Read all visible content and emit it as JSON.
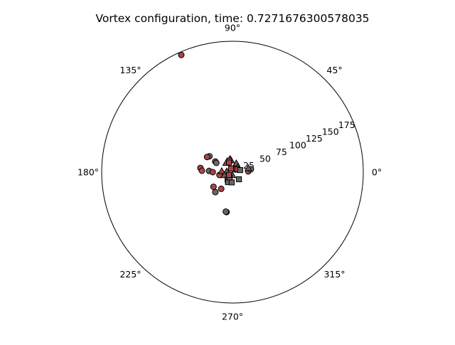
{
  "chart_data": {
    "type": "scatter",
    "projection": "polar",
    "title": "Vortex configuration, time: 0.7271676300578035",
    "theta_ticks": [
      "0°",
      "45°",
      "90°",
      "135°",
      "180°",
      "225°",
      "270°",
      "315°"
    ],
    "theta_tick_values_deg": [
      0,
      45,
      90,
      135,
      180,
      225,
      270,
      315
    ],
    "r_ticks": [
      25,
      50,
      75,
      100,
      125,
      150,
      175
    ],
    "r_tick_labels": [
      "25",
      "50",
      "75",
      "100",
      "125",
      "150",
      "175"
    ],
    "r_label_angle_deg": 22.5,
    "rlim": [
      0,
      185
    ],
    "grid": false,
    "colors": {
      "red": "#a94545",
      "gray": "#666666",
      "edge": "#000000"
    },
    "series": [
      {
        "marker": "circle",
        "points": [
          {
            "r": 180.8,
            "theta": 113.6,
            "color": "red"
          },
          {
            "r": 22.3,
            "theta": 2.6,
            "color": "red"
          },
          {
            "r": 26.3,
            "theta": 8.7,
            "color": "gray"
          },
          {
            "r": 39.5,
            "theta": 145.5,
            "color": "gray"
          },
          {
            "r": 41.8,
            "theta": 149.1,
            "color": "red"
          },
          {
            "r": 28.6,
            "theta": 148.4,
            "color": "red"
          },
          {
            "r": 26.3,
            "theta": 150.1,
            "color": "gray"
          },
          {
            "r": 45.7,
            "theta": 172.5,
            "color": "red"
          },
          {
            "r": 43.3,
            "theta": 177.3,
            "color": "red"
          },
          {
            "r": 33.1,
            "theta": 177.1,
            "color": "gray"
          },
          {
            "r": 27.9,
            "theta": 180.1,
            "color": "red"
          },
          {
            "r": 18.8,
            "theta": 192.4,
            "color": "red"
          },
          {
            "r": 33.9,
            "theta": 217.7,
            "color": "red"
          },
          {
            "r": 37.2,
            "theta": 229.3,
            "color": "gray"
          },
          {
            "r": 28.4,
            "theta": 236.0,
            "color": "red"
          },
          {
            "r": 57.0,
            "theta": 261.5,
            "color": "red"
          },
          {
            "r": 56.6,
            "theta": 260.4,
            "color": "gray"
          },
          {
            "r": 5.1,
            "theta": 51.6,
            "color": "red"
          }
        ]
      },
      {
        "marker": "triangle",
        "points": [
          {
            "r": 19.1,
            "theta": 100.2,
            "color": "red"
          },
          {
            "r": 16.8,
            "theta": 96.8,
            "color": "gray"
          },
          {
            "r": 13.6,
            "theta": 66.5,
            "color": "gray"
          },
          {
            "r": 10.8,
            "theta": 43.5,
            "color": "red"
          },
          {
            "r": 23.1,
            "theta": 14.1,
            "color": "gray"
          },
          {
            "r": 15.3,
            "theta": 174.4,
            "color": "red"
          },
          {
            "r": 8.1,
            "theta": 172.3,
            "color": "red"
          },
          {
            "r": 12.3,
            "theta": 201.0,
            "color": "gray"
          },
          {
            "r": 4.4,
            "theta": 270.0,
            "color": "gray"
          },
          {
            "r": 15.8,
            "theta": 124.5,
            "color": "red"
          },
          {
            "r": 9.3,
            "theta": 21.5,
            "color": "red"
          }
        ]
      },
      {
        "marker": "square",
        "points": [
          {
            "r": 16.9,
            "theta": 105.1,
            "color": "red"
          },
          {
            "r": 14.4,
            "theta": 109.9,
            "color": "red"
          },
          {
            "r": 8.0,
            "theta": 30.0,
            "color": "red"
          },
          {
            "r": 11.2,
            "theta": 14.9,
            "color": "gray"
          },
          {
            "r": 5.4,
            "theta": 111.8,
            "color": "red"
          },
          {
            "r": 12.5,
            "theta": 236.3,
            "color": "red"
          },
          {
            "r": 14.9,
            "theta": 244.8,
            "color": "red"
          },
          {
            "r": 15.4,
            "theta": 246.5,
            "color": "gray"
          },
          {
            "r": 14.5,
            "theta": 266.0,
            "color": "gray"
          },
          {
            "r": 13.6,
            "theta": 312.2,
            "color": "gray"
          },
          {
            "r": 8.5,
            "theta": 241.0,
            "color": "gray"
          },
          {
            "r": 6.3,
            "theta": 219.0,
            "color": "red"
          }
        ]
      }
    ]
  }
}
